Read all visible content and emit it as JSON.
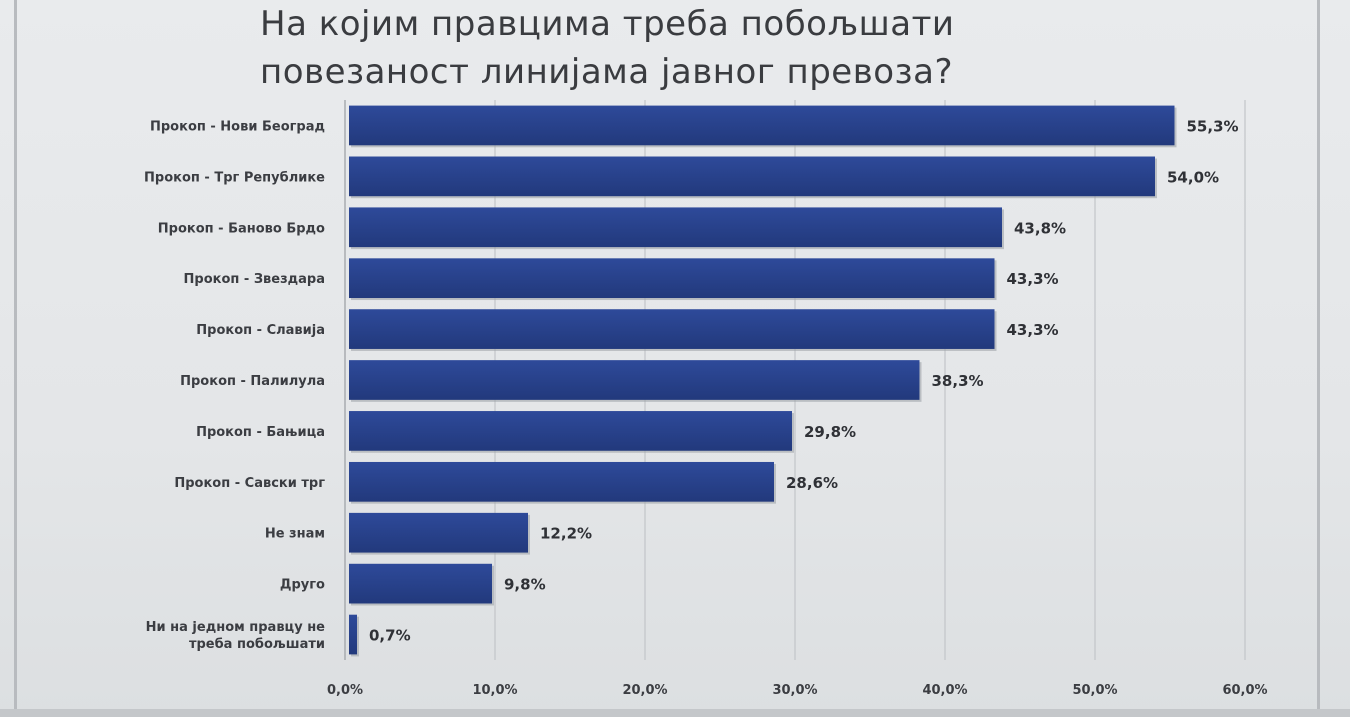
{
  "chart_data": {
    "type": "bar",
    "orientation": "horizontal",
    "title_lines": [
      "На којим правцима треба побољшати",
      "повезаност линијама јавног превоза?"
    ],
    "categories": [
      [
        "Прокоп - Нови Београд"
      ],
      [
        "Прокоп - Трг Републике"
      ],
      [
        "Прокоп - Баново Брдо"
      ],
      [
        "Прокоп - Звездара"
      ],
      [
        "Прокоп - Славија"
      ],
      [
        "Прокоп - Палилула"
      ],
      [
        "Прокоп - Бањица"
      ],
      [
        "Прокоп - Савски трг"
      ],
      [
        "Не знам"
      ],
      [
        "Друго"
      ],
      [
        "Ни на једном правцу не",
        "треба побољшати"
      ]
    ],
    "values": [
      55.3,
      54.0,
      43.8,
      43.3,
      43.3,
      38.3,
      29.8,
      28.6,
      12.2,
      9.8,
      0.7
    ],
    "value_labels": [
      "55,3%",
      "54,0%",
      "43,8%",
      "43,3%",
      "43,3%",
      "38,3%",
      "29,8%",
      "28,6%",
      "12,2%",
      "9,8%",
      "0,7%"
    ],
    "xlim": [
      0,
      60
    ],
    "x_ticks": [
      0,
      10,
      20,
      30,
      40,
      50,
      60
    ],
    "x_tick_labels": [
      "0,0%",
      "10,0%",
      "20,0%",
      "30,0%",
      "40,0%",
      "50,0%",
      "60,0%"
    ],
    "grid": true,
    "bar_color": "#2e4a9a",
    "bar_color_dark": "#22397c",
    "grid_color": "#c2c5c9",
    "legend": "none"
  }
}
